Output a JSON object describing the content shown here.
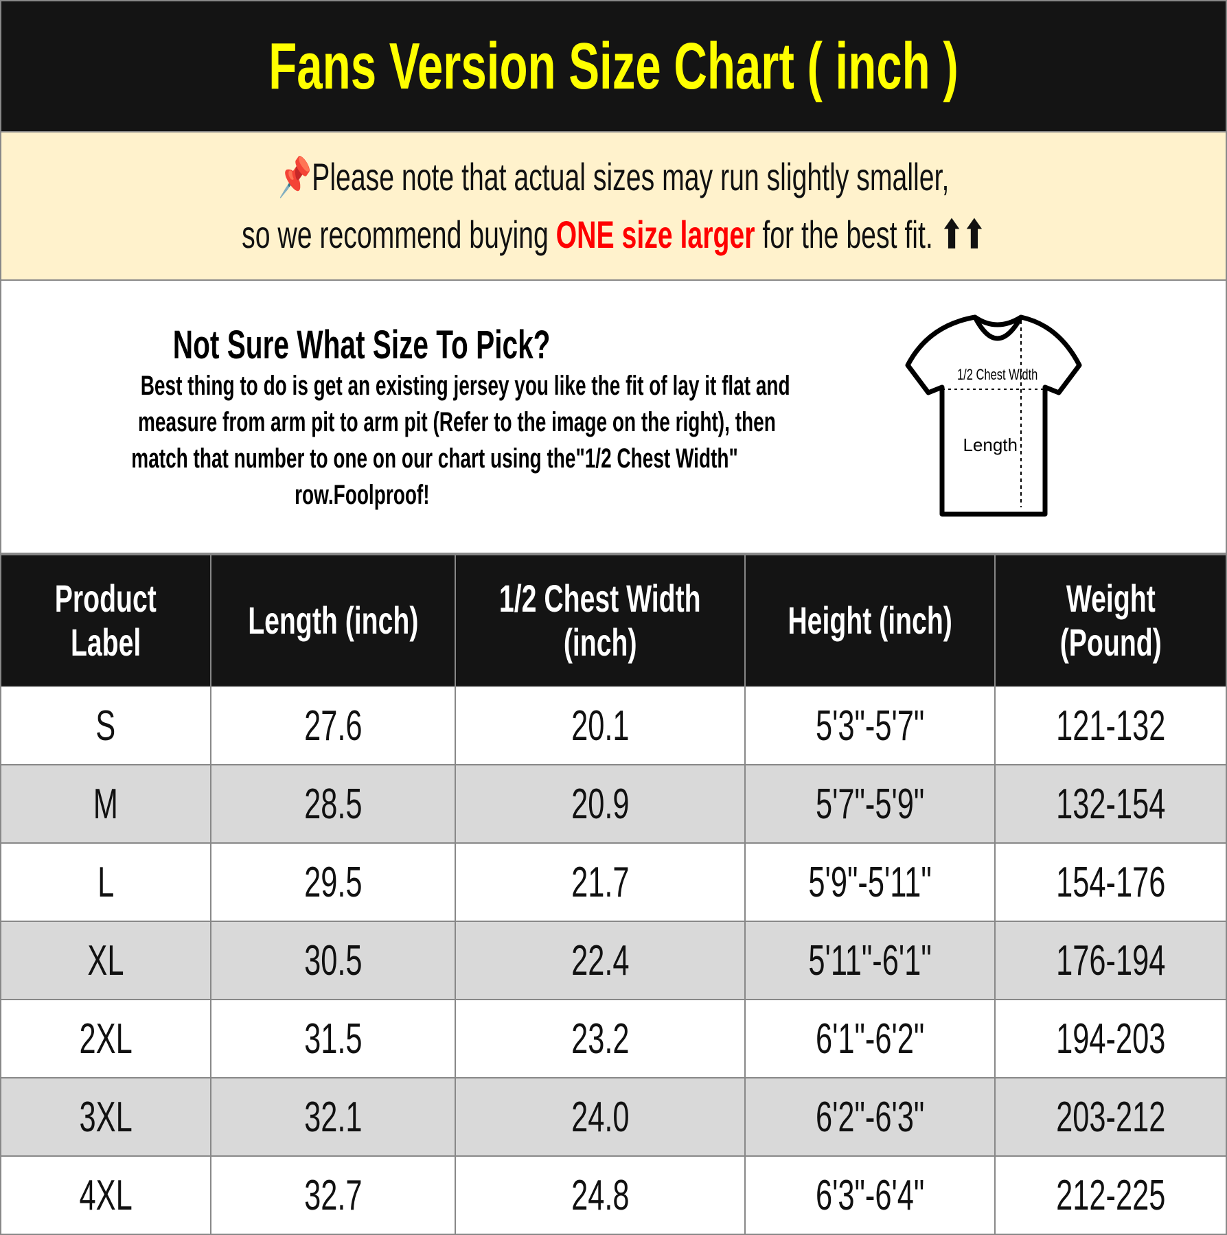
{
  "title": "Fans Version Size Chart ( inch )",
  "note": {
    "icon": "pushpin-icon",
    "line1": "Please note that actual sizes may run slightly smaller,",
    "line2_pre": "so we recommend buying ",
    "line2_highlight": "ONE size larger",
    "line2_post": " for the best fit. ",
    "arrows": "⬆⬆",
    "highlight_color": "#ff0000"
  },
  "info": {
    "heading": "Not Sure What Size To Pick?",
    "line1": "Best thing to do is get an existing jersey you like the fit of lay it flat and",
    "line2": "measure from arm pit to arm pit (Refer to the image on the right), then",
    "line3": "match that number to one on our chart using the\"1/2 Chest Width\"",
    "line4": "row.Foolproof!",
    "diagram_chest": "1/2 Chest Width",
    "diagram_length": "Length"
  },
  "table": {
    "headers": [
      [
        "Product",
        "Label"
      ],
      [
        "Length (inch)",
        ""
      ],
      [
        "1/2 Chest Width",
        "(inch)"
      ],
      [
        "Height (inch)",
        ""
      ],
      [
        "Weight",
        "(Pound)"
      ]
    ],
    "rows": [
      [
        "S",
        "27.6",
        "20.1",
        "5'3\"-5'7\"",
        "121-132"
      ],
      [
        "M",
        "28.5",
        "20.9",
        "5'7\"-5'9\"",
        "132-154"
      ],
      [
        "L",
        "29.5",
        "21.7",
        "5'9\"-5'11\"",
        "154-176"
      ],
      [
        "XL",
        "30.5",
        "22.4",
        "5'11\"-6'1\"",
        "176-194"
      ],
      [
        "2XL",
        "31.5",
        "23.2",
        "6'1\"-6'2\"",
        "194-203"
      ],
      [
        "3XL",
        "32.1",
        "24.0",
        "6'2\"-6'3\"",
        "203-212"
      ],
      [
        "4XL",
        "32.7",
        "24.8",
        "6'3\"-6'4\"",
        "212-225"
      ]
    ]
  },
  "colors": {
    "title_bg": "#141414",
    "title_text": "#ffff00",
    "note_bg": "#fff2cc",
    "alt_row": "#d9d9d9"
  }
}
